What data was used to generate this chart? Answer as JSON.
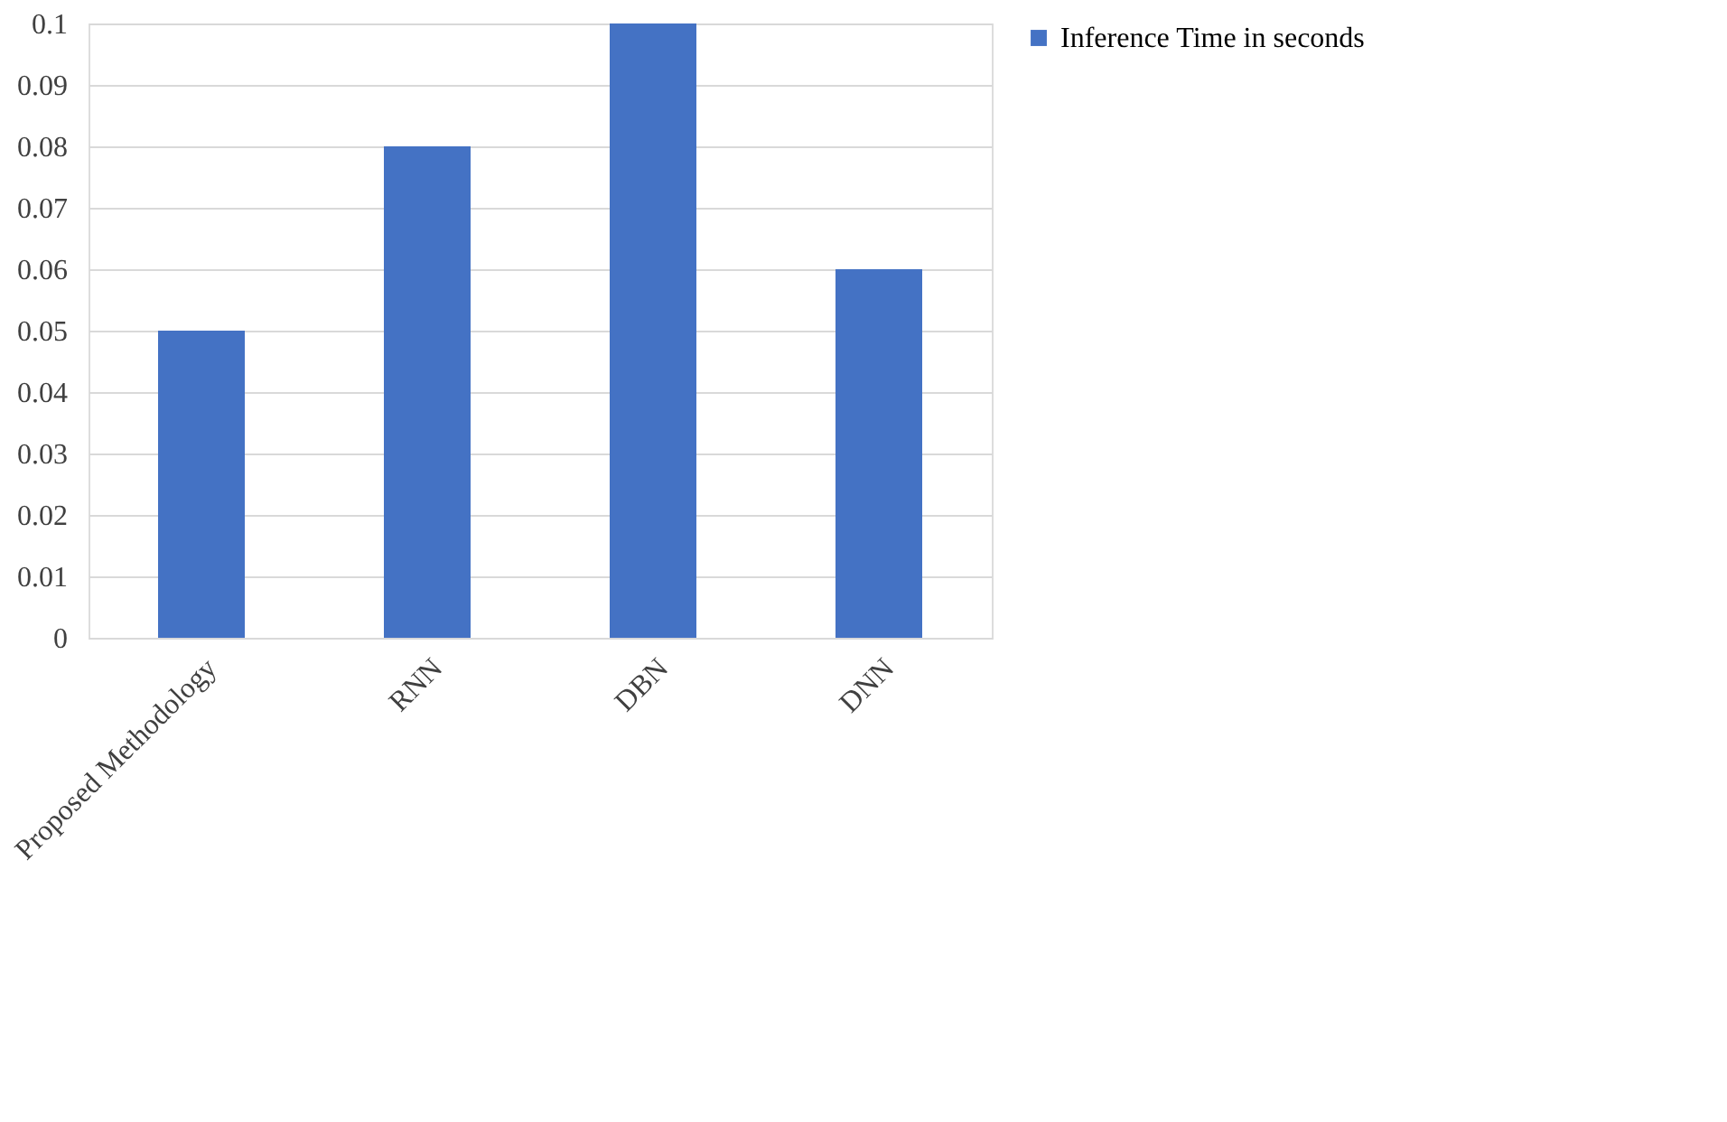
{
  "chart_data": {
    "type": "bar",
    "categories": [
      "Proposed Methodology",
      "RNN",
      "DBN",
      "DNN"
    ],
    "series": [
      {
        "name": "Inference Time in seconds",
        "color": "#4472c4",
        "values": [
          0.05,
          0.08,
          0.1,
          0.06
        ]
      }
    ],
    "ylim": [
      0,
      0.1
    ],
    "yticks": [
      0,
      0.01,
      0.02,
      0.03,
      0.04,
      0.05,
      0.06,
      0.07,
      0.08,
      0.09,
      0.1
    ],
    "grid": "y",
    "legend": "right"
  }
}
